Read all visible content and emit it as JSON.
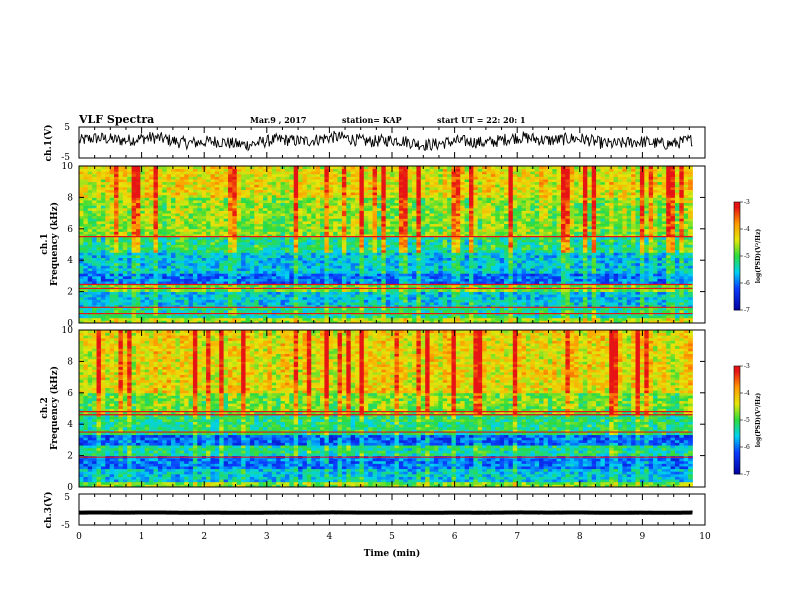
{
  "header": {
    "title": "VLF Spectra",
    "date": "Mar.9 , 2017",
    "station": "station= KAP",
    "start": "start  UT =   22: 20: 1"
  },
  "colors": {
    "dark_blue": "#0000a0",
    "blue": "#0a3cff",
    "cyan": "#00d2f0",
    "green": "#2ddc3c",
    "yellow": "#e6e60a",
    "orange": "#ff9a00",
    "red": "#e61414",
    "trace": "#000000"
  },
  "chart_data": [
    {
      "type": "line",
      "panel": "ch1-waveform",
      "ylabel": "ch.1(V)",
      "xlim": [
        0,
        10
      ],
      "ylim": [
        -5,
        5
      ],
      "x_ticks": [
        0,
        1,
        2,
        3,
        4,
        5,
        6,
        7,
        8,
        9,
        10
      ],
      "y_ticks": [
        "-5",
        "5"
      ],
      "x_end": 9.8,
      "series_mean": 0.5,
      "series_amplitude": 2.5
    },
    {
      "type": "heatmap",
      "panel": "ch1-spectrogram",
      "ylabel": "ch.1\nFrequency  (kHz)",
      "xlim": [
        0,
        10
      ],
      "ylim": [
        0,
        10
      ],
      "x_end": 9.8,
      "y_ticks": [
        "0",
        "2",
        "4",
        "6",
        "8",
        "10"
      ],
      "colorbar": {
        "label": "log(PSD)(V²/Hz)",
        "range": [
          -7,
          -3
        ],
        "ticks": [
          "-3",
          "-4",
          "-5",
          "-6",
          "-7"
        ]
      },
      "bands": [
        {
          "from": 0.0,
          "to": 0.4,
          "level": -4.6
        },
        {
          "from": 0.4,
          "to": 1.0,
          "level": -5.3
        },
        {
          "from": 1.0,
          "to": 2.0,
          "level": -5.6
        },
        {
          "from": 2.0,
          "to": 2.5,
          "level": -4.9
        },
        {
          "from": 2.5,
          "to": 3.2,
          "level": -6.0
        },
        {
          "from": 3.2,
          "to": 4.5,
          "level": -5.6
        },
        {
          "from": 4.5,
          "to": 5.5,
          "level": -5.2
        },
        {
          "from": 5.5,
          "to": 8.0,
          "level": -4.7
        },
        {
          "from": 8.0,
          "to": 10.0,
          "level": -4.3
        }
      ],
      "lines_khz": [
        0.6,
        1.0,
        2.2,
        2.45,
        5.5
      ]
    },
    {
      "type": "heatmap",
      "panel": "ch2-spectrogram",
      "ylabel": "ch.2\nFrequency  (kHz)",
      "xlim": [
        0,
        10
      ],
      "ylim": [
        0,
        10
      ],
      "x_end": 9.8,
      "y_ticks": [
        "0",
        "2",
        "4",
        "6",
        "8",
        "10"
      ],
      "colorbar": {
        "label": "log(PSD)(V²/Hz)",
        "range": [
          -7,
          -3
        ],
        "ticks": [
          "-3",
          "-4",
          "-5",
          "-6",
          "-7"
        ]
      },
      "bands": [
        {
          "from": 0.0,
          "to": 0.4,
          "level": -4.8
        },
        {
          "from": 0.4,
          "to": 1.2,
          "level": -5.6
        },
        {
          "from": 1.2,
          "to": 2.0,
          "level": -6.0
        },
        {
          "from": 2.0,
          "to": 2.6,
          "level": -5.3
        },
        {
          "from": 2.6,
          "to": 3.4,
          "level": -6.1
        },
        {
          "from": 3.4,
          "to": 4.6,
          "level": -5.2
        },
        {
          "from": 4.6,
          "to": 6.0,
          "level": -4.8
        },
        {
          "from": 6.0,
          "to": 10.0,
          "level": -4.3
        }
      ],
      "lines_khz": [
        1.9,
        3.5,
        4.6,
        4.8
      ]
    },
    {
      "type": "line",
      "panel": "ch3-waveform",
      "ylabel": "ch.3(V)",
      "xlabel": "Time  (min)",
      "xlim": [
        0,
        10
      ],
      "ylim": [
        -5,
        5
      ],
      "x_ticks": [
        "0",
        "1",
        "2",
        "3",
        "4",
        "5",
        "6",
        "7",
        "8",
        "9",
        "10"
      ],
      "y_ticks": [
        "-5",
        "5"
      ],
      "x_end": 9.8,
      "series_mean": -1.0,
      "series_amplitude": 0.1
    }
  ]
}
